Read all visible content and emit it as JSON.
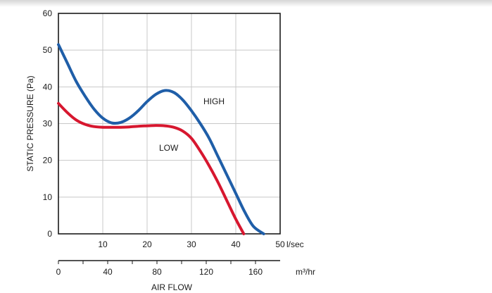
{
  "chart_data": {
    "type": "line",
    "title": "",
    "ylabel": "STATIC PRESSURE (Pa)",
    "xlabel": "AIR FLOW",
    "x_unit": "l/sec",
    "x2_unit": "m³/hr",
    "xlim": [
      0,
      50
    ],
    "ylim": [
      0,
      60
    ],
    "x_ticks": [
      10,
      20,
      30,
      40,
      50
    ],
    "y_ticks": [
      0,
      10,
      20,
      30,
      40,
      50,
      60
    ],
    "x2_ticks": [
      0,
      40,
      80,
      120,
      160
    ],
    "grid": true,
    "series": [
      {
        "name": "HIGH",
        "color": "#1f5ea8",
        "x": [
          0,
          2,
          4,
          6,
          8,
          10,
          12,
          14,
          16,
          18,
          20,
          22,
          24,
          26,
          28,
          30,
          32,
          34,
          36,
          38,
          40,
          42,
          44,
          46.3
        ],
        "y": [
          51.5,
          46.5,
          41.5,
          37.5,
          34,
          31.5,
          30.2,
          30.3,
          31.5,
          33.5,
          36,
          38,
          39,
          38.5,
          36.5,
          33.5,
          30,
          26,
          21,
          16,
          11,
          6,
          2,
          0
        ]
      },
      {
        "name": "LOW",
        "color": "#d7172f",
        "x": [
          0,
          2,
          4,
          6,
          8,
          10,
          12,
          14,
          16,
          18,
          20,
          22,
          24,
          26,
          28,
          30,
          32,
          34,
          36,
          38,
          40,
          41.8
        ],
        "y": [
          35.5,
          33,
          31,
          29.8,
          29.2,
          29,
          29,
          29,
          29.1,
          29.3,
          29.4,
          29.5,
          29.4,
          29,
          28,
          26,
          22.5,
          18.5,
          14,
          9,
          4,
          0
        ]
      }
    ]
  }
}
